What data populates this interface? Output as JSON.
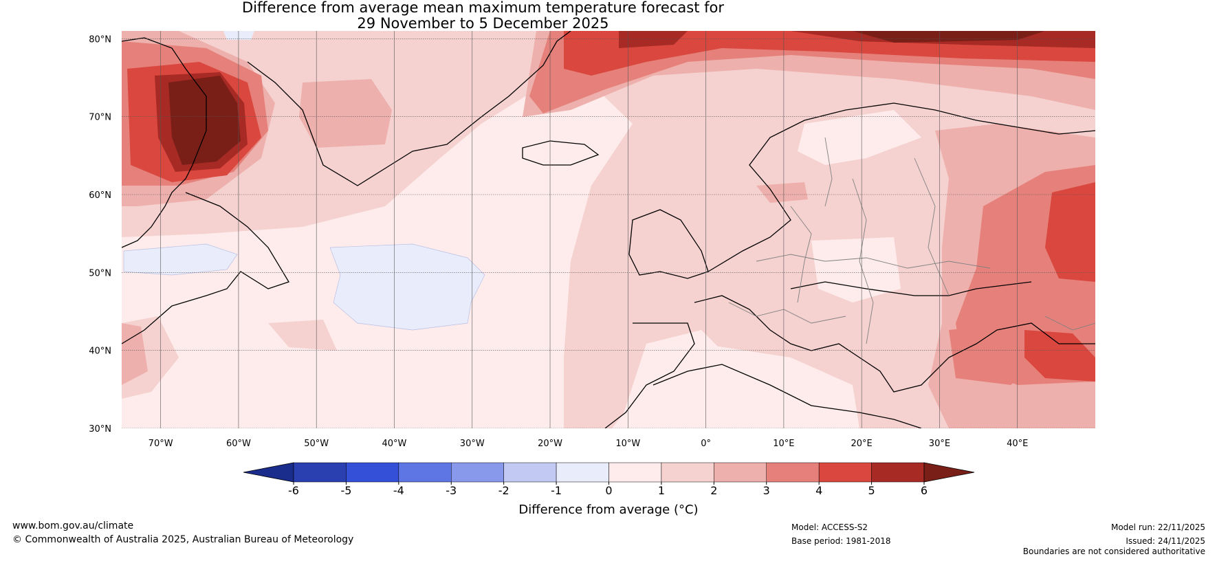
{
  "title": {
    "line1": "Difference from average mean maximum temperature forecast for",
    "line2": "29 November to 5 December 2025"
  },
  "map": {
    "lat_labels": [
      "80°N",
      "70°N",
      "60°N",
      "50°N",
      "40°N",
      "30°N"
    ],
    "lat_values": [
      80,
      70,
      60,
      50,
      40,
      30
    ],
    "lon_labels": [
      "70°W",
      "60°W",
      "50°W",
      "40°W",
      "30°W",
      "20°W",
      "10°W",
      "0°",
      "10°E",
      "20°E",
      "30°E",
      "40°E"
    ],
    "lon_values": [
      -70,
      -60,
      -50,
      -40,
      -30,
      -20,
      -10,
      0,
      10,
      20,
      30,
      40
    ],
    "extent": {
      "lon_min": -75,
      "lon_max": 50,
      "lat_min": 30,
      "lat_max": 81
    }
  },
  "colorbar": {
    "label": "Difference from average (°C)",
    "ticks": [
      "-6",
      "-5",
      "-4",
      "-3",
      "-2",
      "-1",
      "0",
      "1",
      "2",
      "3",
      "4",
      "5",
      "6"
    ],
    "colors": [
      "#1a2d8c",
      "#2a3fb0",
      "#3450d8",
      "#5e76e4",
      "#8898ea",
      "#c2caf4",
      "#e8ecfb",
      "#fdeceb",
      "#f5d2d0",
      "#eeb0ac",
      "#e5817a",
      "#d9473e",
      "#a72a25",
      "#7a1f17"
    ]
  },
  "footer": {
    "website": "www.bom.gov.au/climate",
    "copyright": "© Commonwealth of Australia 2025, Australian Bureau of Meteorology",
    "model": "Model: ACCESS-S2",
    "base_period": "Base period: 1981-2018",
    "model_run": "Model run: 22/11/2025",
    "issued": "Issued: 24/11/2025",
    "disclaimer": "Boundaries are not considered authoritative"
  }
}
